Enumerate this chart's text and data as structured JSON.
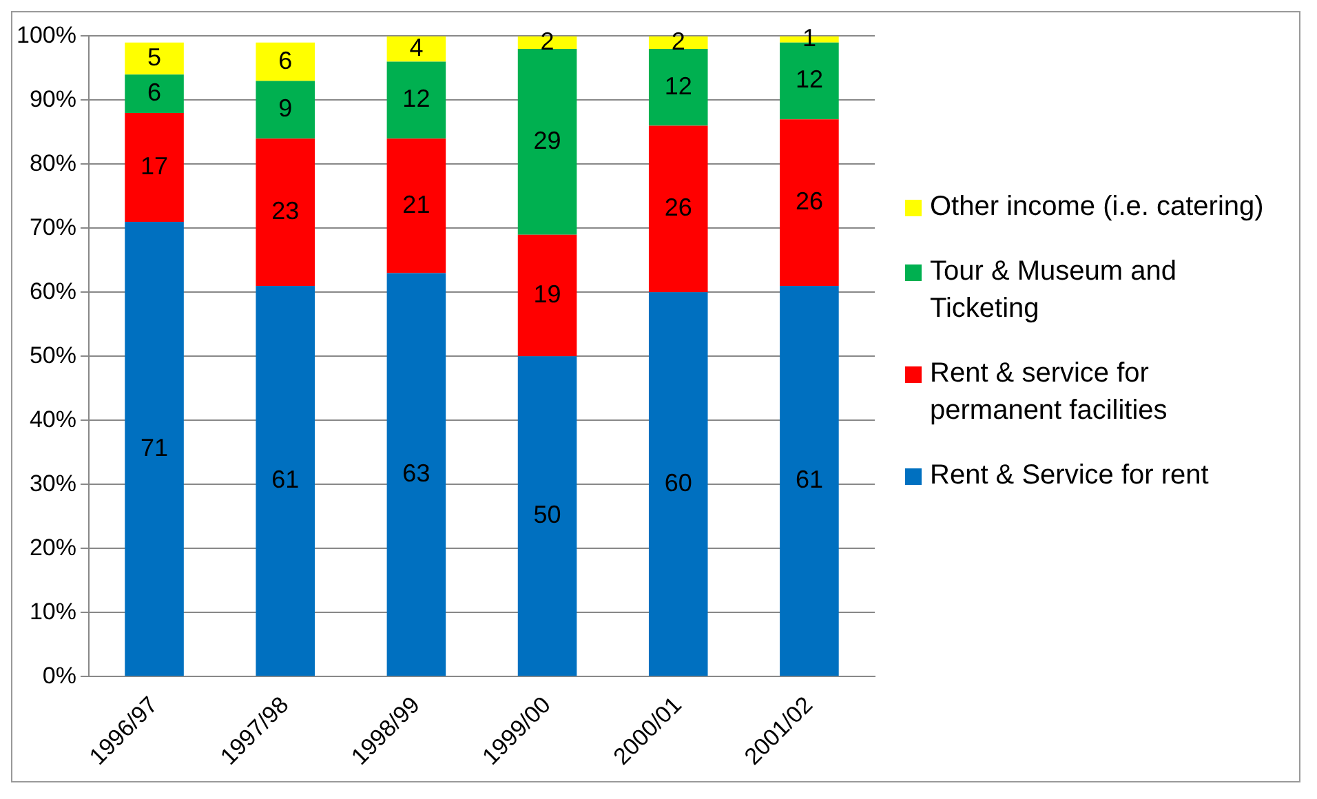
{
  "chart_data": {
    "type": "bar",
    "stacked": true,
    "categories": [
      "1996/97",
      "1997/98",
      "1998/99",
      "1999/00",
      "2000/01",
      "2001/02"
    ],
    "series": [
      {
        "name": "Rent & Service for rent",
        "color": "#0070c0",
        "values": [
          71,
          61,
          63,
          50,
          60,
          61
        ]
      },
      {
        "name": "Rent & service for permanent facilities",
        "color": "#ff0000",
        "values": [
          17,
          23,
          21,
          19,
          26,
          26
        ]
      },
      {
        "name": "Tour & Museum and Ticketing",
        "color": "#00b050",
        "values": [
          6,
          9,
          12,
          29,
          12,
          12
        ]
      },
      {
        "name": "Other income (i.e. catering)",
        "color": "#ffff00",
        "values": [
          5,
          6,
          4,
          2,
          2,
          1
        ]
      }
    ],
    "ylim": [
      0,
      100
    ],
    "yticks": [
      {
        "value": 0,
        "label": "0%"
      },
      {
        "value": 10,
        "label": "10%"
      },
      {
        "value": 20,
        "label": "20%"
      },
      {
        "value": 30,
        "label": "30%"
      },
      {
        "value": 40,
        "label": "40%"
      },
      {
        "value": 50,
        "label": "50%"
      },
      {
        "value": 60,
        "label": "60%"
      },
      {
        "value": 70,
        "label": "70%"
      },
      {
        "value": 80,
        "label": "80%"
      },
      {
        "value": 90,
        "label": "90%"
      },
      {
        "value": 100,
        "label": "100%"
      }
    ],
    "grid": "y",
    "legend": "right",
    "data_labels": true
  }
}
